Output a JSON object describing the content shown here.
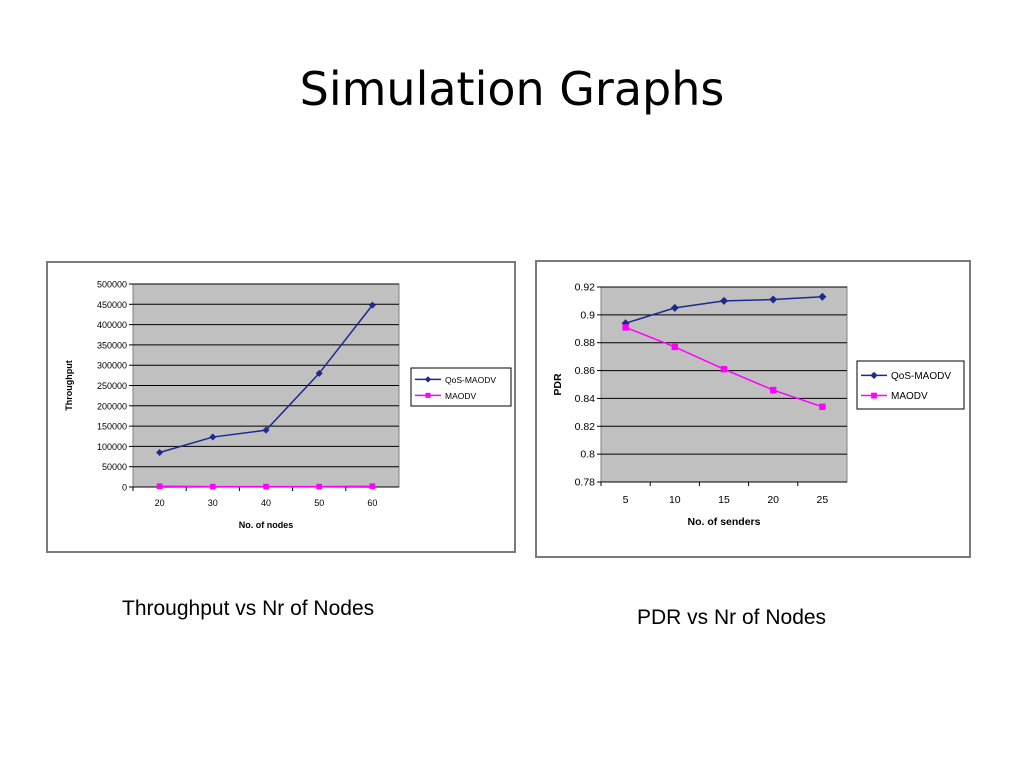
{
  "slide": {
    "title": "Simulation Graphs",
    "captions": [
      "Throughput vs Nr of Nodes",
      "PDR vs Nr of Nodes"
    ]
  },
  "colors": {
    "qos": "#1c2a8c",
    "maodv": "#ff00ff",
    "plot_bg": "#c0c0c0",
    "grid": "#000000"
  },
  "chart_data": [
    {
      "type": "line",
      "categories": [
        "20",
        "30",
        "40",
        "50",
        "60"
      ],
      "series": [
        {
          "name": "QoS-MAODV",
          "values": [
            85000,
            123000,
            140000,
            280000,
            448000
          ]
        },
        {
          "name": "MAODV",
          "values": [
            2000,
            1000,
            1000,
            1000,
            2000
          ]
        }
      ],
      "xlabel": "No. of nodes",
      "ylabel": "Throughput",
      "ylim": [
        0,
        500000
      ],
      "yticks": [
        "500000",
        "450000",
        "400000",
        "350000",
        "300000",
        "250000",
        "200000",
        "150000",
        "100000",
        "50000",
        "0"
      ],
      "grid": true,
      "legend": "right"
    },
    {
      "type": "line",
      "categories": [
        "5",
        "10",
        "15",
        "20",
        "25"
      ],
      "series": [
        {
          "name": "QoS-MAODV",
          "values": [
            0.894,
            0.905,
            0.91,
            0.911,
            0.913
          ]
        },
        {
          "name": "MAODV",
          "values": [
            0.891,
            0.877,
            0.861,
            0.846,
            0.834
          ]
        }
      ],
      "xlabel": "No. of senders",
      "ylabel": "PDR",
      "ylim": [
        0.78,
        0.92
      ],
      "yticks": [
        "0.92",
        "0.9",
        "0.88",
        "0.86",
        "0.84",
        "0.82",
        "0.8",
        "0.78"
      ],
      "grid": true,
      "legend": "right"
    }
  ]
}
